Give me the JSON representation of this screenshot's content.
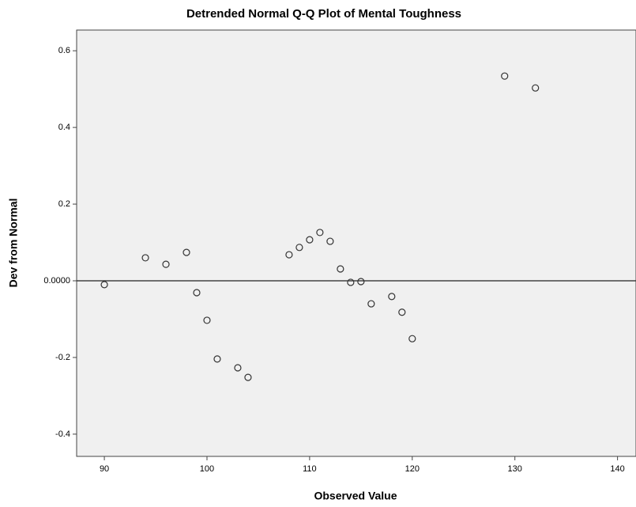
{
  "chart_data": {
    "type": "scatter",
    "title": "Detrended Normal Q-Q Plot of Mental Toughness",
    "xlabel": "Observed Value",
    "ylabel": "Dev from Normal",
    "x": [
      90,
      94,
      96,
      98,
      99,
      100,
      101,
      103,
      104,
      108,
      109,
      110,
      111,
      112,
      113,
      114,
      115,
      116,
      118,
      119,
      120,
      129,
      132
    ],
    "values": [
      -0.01,
      0.06,
      0.043,
      0.074,
      -0.031,
      -0.103,
      -0.204,
      -0.227,
      -0.252,
      0.068,
      0.087,
      0.107,
      0.126,
      0.103,
      0.031,
      -0.004,
      -0.002,
      -0.06,
      -0.041,
      -0.082,
      -0.151,
      0.534,
      0.503
    ],
    "color": "#333333",
    "xlim": [
      87.3,
      141.8
    ],
    "xticks": [
      90,
      100,
      110,
      120,
      130,
      140
    ],
    "ylim": [
      -0.458,
      0.654
    ],
    "yticks": [
      0.6,
      0.4,
      0.2,
      {
        "value": 0,
        "label": "0.0000"
      },
      -0.2,
      -0.4
    ],
    "hline": 0
  }
}
